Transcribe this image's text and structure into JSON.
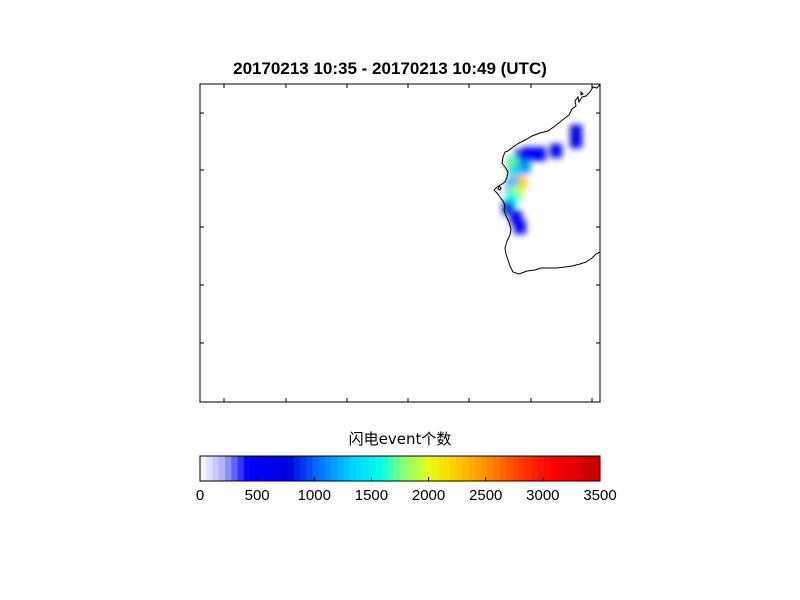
{
  "chart_data": {
    "type": "heatmap",
    "title": "20170213 10:35 - 20170213 10:49 (UTC)",
    "colorbar": {
      "label": "闪电event个数",
      "ticks": [
        0,
        500,
        1000,
        1500,
        2000,
        2500,
        3000,
        3500
      ],
      "tick_labels": [
        "0",
        "500",
        "1000",
        "1500",
        "2000",
        "2500",
        "3000",
        "3500"
      ],
      "range": [
        0,
        3500
      ],
      "colormap": "jet-with-white-start"
    },
    "map": {
      "region": "Western Australia (southwest coast)",
      "coastline_color": "#000000"
    },
    "cells": [
      {
        "lon_frac": 0.94,
        "lat_frac": 0.15,
        "value": 700
      },
      {
        "lon_frac": 0.94,
        "lat_frac": 0.18,
        "value": 600
      },
      {
        "lon_frac": 0.89,
        "lat_frac": 0.21,
        "value": 550
      },
      {
        "lon_frac": 0.85,
        "lat_frac": 0.22,
        "value": 500
      },
      {
        "lon_frac": 0.82,
        "lat_frac": 0.22,
        "value": 450
      },
      {
        "lon_frac": 0.8,
        "lat_frac": 0.23,
        "value": 500
      },
      {
        "lon_frac": 0.78,
        "lat_frac": 0.25,
        "value": 1700
      },
      {
        "lon_frac": 0.81,
        "lat_frac": 0.26,
        "value": 1100
      },
      {
        "lon_frac": 0.79,
        "lat_frac": 0.28,
        "value": 1300
      },
      {
        "lon_frac": 0.8,
        "lat_frac": 0.31,
        "value": 2300
      },
      {
        "lon_frac": 0.78,
        "lat_frac": 0.32,
        "value": 1200
      },
      {
        "lon_frac": 0.79,
        "lat_frac": 0.34,
        "value": 1900
      },
      {
        "lon_frac": 0.78,
        "lat_frac": 0.36,
        "value": 1600
      },
      {
        "lon_frac": 0.77,
        "lat_frac": 0.39,
        "value": 900
      },
      {
        "lon_frac": 0.79,
        "lat_frac": 0.42,
        "value": 600
      },
      {
        "lon_frac": 0.8,
        "lat_frac": 0.45,
        "value": 500
      }
    ],
    "grid": false
  }
}
